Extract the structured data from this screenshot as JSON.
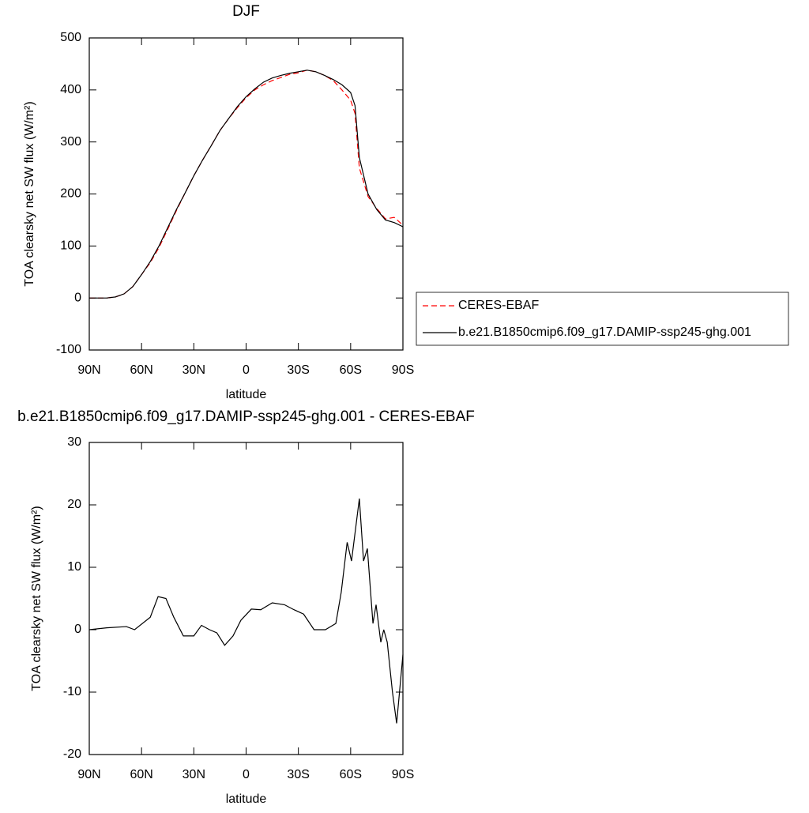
{
  "chart_data": [
    {
      "type": "line",
      "title": "DJF",
      "x_label": "latitude",
      "y_label": "TOA clearsky net SW flux (W/m²)",
      "x": [
        90,
        85,
        80,
        75,
        70,
        65,
        60,
        55,
        50,
        45,
        40,
        35,
        30,
        25,
        20,
        15,
        10,
        5,
        0,
        -5,
        -10,
        -15,
        -20,
        -25,
        -30,
        -35,
        -40,
        -45,
        -50,
        -55,
        -60,
        -62.5,
        -65,
        -70,
        -75,
        -80,
        -85,
        -90
      ],
      "series": [
        {
          "name": "CERES-EBAF",
          "color": "#ff0000",
          "linestyle": "dashed",
          "values": [
            0,
            0,
            0,
            2,
            8,
            22,
            45,
            68,
            97,
            132,
            168,
            202,
            235,
            265,
            293,
            322,
            345,
            366,
            385,
            400,
            410,
            418,
            424,
            430,
            433,
            438,
            435,
            428,
            418,
            400,
            380,
            355,
            250,
            195,
            172,
            152,
            155,
            140
          ]
        },
        {
          "name": "b.e21.B1850cmip6.f09_g17.DAMIP-ssp245-ghg.001",
          "color": "#000000",
          "linestyle": "solid",
          "values": [
            0,
            0,
            0,
            2,
            8,
            22,
            45,
            70,
            100,
            135,
            170,
            202,
            235,
            265,
            293,
            322,
            345,
            368,
            387,
            402,
            415,
            423,
            428,
            432,
            435,
            438,
            435,
            428,
            420,
            410,
            395,
            370,
            270,
            200,
            170,
            150,
            145,
            137
          ]
        }
      ],
      "xlim": [
        90,
        -90
      ],
      "xticks": [
        {
          "value": 90,
          "label": "90N"
        },
        {
          "value": 60,
          "label": "60N"
        },
        {
          "value": 30,
          "label": "30N"
        },
        0,
        {
          "value": -30,
          "label": "30S"
        },
        {
          "value": -60,
          "label": "60S"
        },
        {
          "value": -90,
          "label": "90S"
        }
      ],
      "ylim": [
        -100,
        500
      ],
      "yticks": [
        -100,
        0,
        100,
        200,
        300,
        400,
        500
      ],
      "legend": "right"
    },
    {
      "type": "line",
      "title": "b.e21.B1850cmip6.f09_g17.DAMIP-ssp245-ghg.001 - CERES-EBAF",
      "x_label": "latitude",
      "y_label": "TOA clearsky net SW flux (W/m²)",
      "x": [
        90,
        80,
        68.7,
        64,
        55,
        50.5,
        46,
        41.5,
        36,
        30,
        25.6,
        21,
        16.8,
        12.3,
        7.5,
        3,
        -3,
        -8.4,
        -15,
        -22,
        -27.5,
        -33,
        -39,
        -45.5,
        -51.5,
        -54.6,
        -58,
        -60.5,
        -65,
        -67.4,
        -69.6,
        -72.8,
        -74.6,
        -77.3,
        -79,
        -81,
        -84,
        -86.4,
        -90
      ],
      "series": [
        {
          "color": "#000000",
          "values": [
            0,
            0.3,
            0.5,
            0,
            2,
            5.3,
            5,
            2,
            -1,
            -1,
            0.7,
            0,
            -0.5,
            -2.5,
            -1,
            1.5,
            3.3,
            3.2,
            4.3,
            4,
            3.2,
            2.5,
            0,
            0,
            1,
            6,
            14,
            11,
            21,
            11,
            13,
            1,
            4,
            -2,
            0,
            -2,
            -10,
            -15,
            -4
          ]
        }
      ],
      "xlim": [
        90,
        -90
      ],
      "xticks": [
        {
          "value": 90,
          "label": "90N"
        },
        {
          "value": 60,
          "label": "60N"
        },
        {
          "value": 30,
          "label": "30N"
        },
        0,
        {
          "value": -30,
          "label": "30S"
        },
        {
          "value": -60,
          "label": "60S"
        },
        {
          "value": -90,
          "label": "90S"
        }
      ],
      "ylim": [
        -20,
        30
      ],
      "yticks": [
        -20,
        -10,
        0,
        10,
        20,
        30
      ]
    }
  ]
}
